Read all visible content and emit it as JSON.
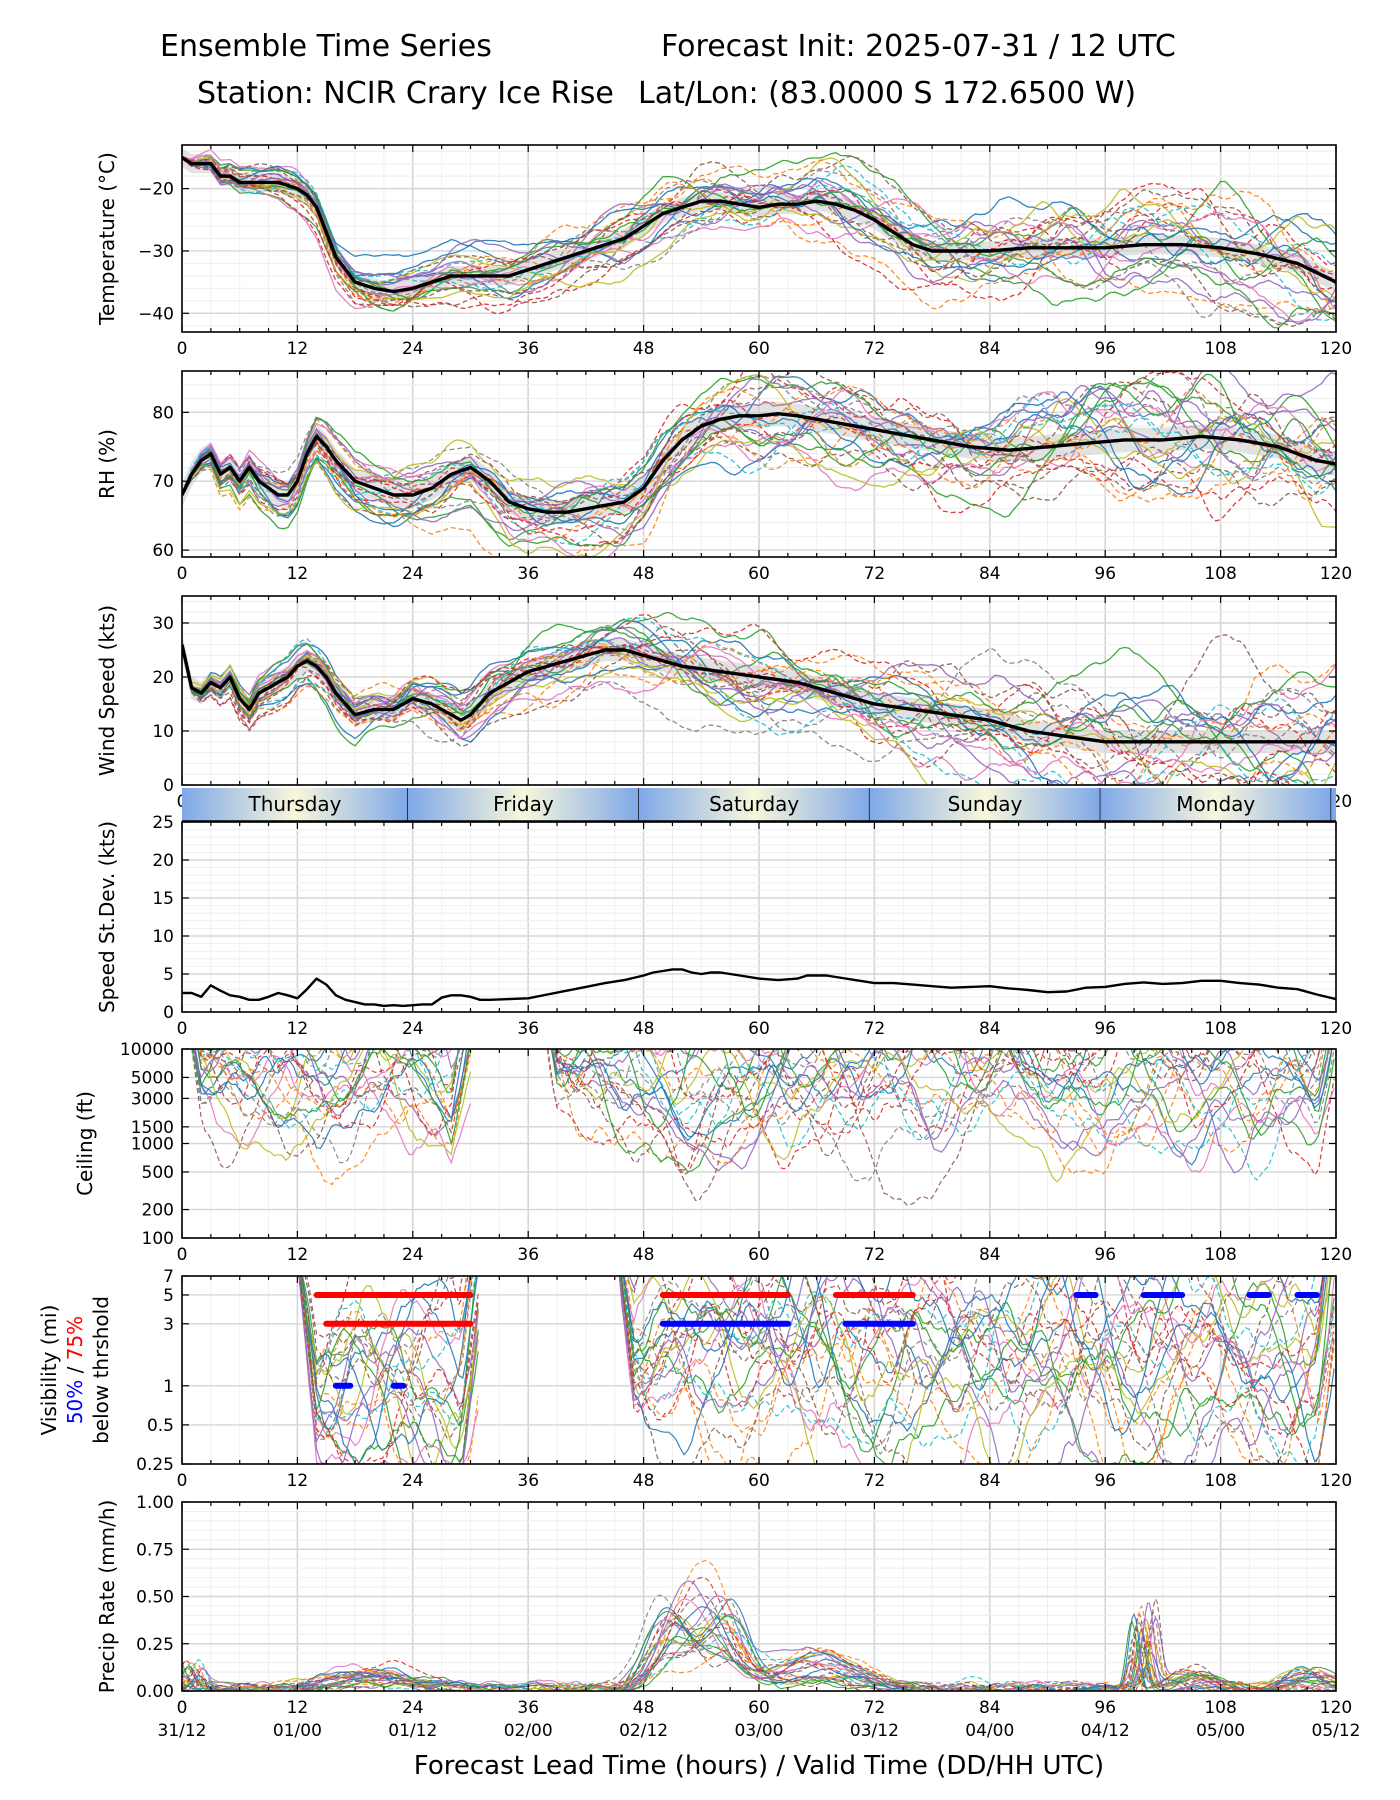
{
  "header": {
    "title_left": "Ensemble Time Series",
    "title_right": "Forecast Init: 2025-07-31 / 12 UTC",
    "station": "Station: NCIR Crary Ice Rise",
    "latlon": "Lat/Lon: (83.0000 S 172.6500 W)"
  },
  "colors": {
    "mean_line": "#000000",
    "members": [
      "#1f77b4",
      "#ff7f0e",
      "#2ca02c",
      "#d62728",
      "#9467bd",
      "#8c564b",
      "#e377c2",
      "#7f7f7f",
      "#bcbd22",
      "#17becf"
    ],
    "vis_50pct": "#0000ff",
    "vis_75pct": "#ff0000",
    "day_band_edge": "#7fa8e8",
    "day_band_center": "#f8f7dc"
  },
  "day_band": {
    "days": [
      {
        "label": "Thursday",
        "start": 0,
        "end": 23.5
      },
      {
        "label": "Friday",
        "start": 23.5,
        "end": 47.5
      },
      {
        "label": "Saturday",
        "start": 47.5,
        "end": 71.5
      },
      {
        "label": "Sunday",
        "start": 71.5,
        "end": 95.5
      },
      {
        "label": "Monday",
        "start": 95.5,
        "end": 119.5
      }
    ]
  },
  "x_axis": {
    "ticks": [
      0,
      12,
      24,
      36,
      48,
      60,
      72,
      84,
      96,
      108,
      120
    ],
    "valid_time_labels": [
      "31/12",
      "01/00",
      "01/12",
      "02/00",
      "02/12",
      "03/00",
      "03/12",
      "04/00",
      "04/12",
      "05/00",
      "05/12"
    ],
    "xlabel": "Forecast Lead Time (hours) / Valid Time (DD/HH UTC)",
    "xlim": [
      0,
      120
    ]
  },
  "chart_data": [
    {
      "type": "line",
      "id": "temp",
      "ylabel": "Temperature (°C)",
      "ylim": [
        -43,
        -13
      ],
      "yticks": [
        -40,
        -30,
        -20
      ],
      "ytick_labels": [
        "−40",
        "−30",
        "−20"
      ],
      "x": [
        0,
        1,
        2,
        3,
        4,
        5,
        6,
        8,
        10,
        12,
        13,
        14,
        15,
        16,
        18,
        20,
        22,
        24,
        26,
        28,
        30,
        32,
        34,
        36,
        38,
        40,
        42,
        44,
        46,
        48,
        50,
        52,
        54,
        56,
        58,
        60,
        62,
        64,
        66,
        68,
        70,
        72,
        74,
        76,
        78,
        80,
        84,
        88,
        92,
        96,
        100,
        104,
        108,
        112,
        116,
        120
      ],
      "series": [
        {
          "name": "",
          "values": [
            -15,
            -16,
            -16,
            -16,
            -18,
            -18,
            -19,
            -19,
            -19,
            -20,
            -21,
            -23,
            -27,
            -31,
            -35,
            -36,
            -36.5,
            -36,
            -35,
            -34,
            -34,
            -34,
            -34,
            -33,
            -32,
            -31,
            -30,
            -29,
            -28,
            -26,
            -24,
            -23,
            -22,
            -22,
            -22.5,
            -23,
            -22.5,
            -22.5,
            -22,
            -22.5,
            -23.5,
            -25,
            -27,
            -29,
            -30,
            -30,
            -30,
            -29.5,
            -29.5,
            -29.5,
            -29,
            -29,
            -29.5,
            -30.5,
            -32,
            -35
          ]
        }
      ],
      "spread": 2.2,
      "missing": "none"
    },
    {
      "type": "line",
      "id": "rh",
      "ylabel": "RH (%)",
      "ylim": [
        59,
        86
      ],
      "yticks": [
        60,
        70,
        80
      ],
      "ytick_labels": [
        "60",
        "70",
        "80"
      ],
      "x": [
        0,
        1,
        2,
        3,
        4,
        5,
        6,
        7,
        8,
        9,
        10,
        11,
        12,
        13,
        14,
        15,
        16,
        18,
        20,
        22,
        24,
        26,
        28,
        30,
        32,
        34,
        36,
        38,
        40,
        42,
        44,
        46,
        48,
        50,
        52,
        54,
        56,
        58,
        60,
        62,
        64,
        66,
        70,
        74,
        78,
        82,
        86,
        90,
        94,
        98,
        102,
        106,
        110,
        114,
        118,
        120
      ],
      "series": [
        {
          "name": "",
          "values": [
            68,
            71,
            73,
            74,
            71,
            72,
            70,
            72,
            70,
            69,
            68,
            68,
            70,
            74,
            76.5,
            75,
            73,
            70,
            69,
            68,
            68,
            69,
            71,
            72,
            70,
            67,
            66,
            65.5,
            65.5,
            66,
            66.5,
            67,
            69,
            73,
            76,
            78,
            79,
            79.5,
            79.5,
            79.8,
            79.5,
            79,
            78,
            77,
            76,
            75,
            74.5,
            75,
            75.5,
            76,
            76,
            76.5,
            76,
            75,
            73,
            72.5
          ]
        }
      ],
      "spread": 2.5,
      "missing": "none"
    },
    {
      "type": "line",
      "id": "wind",
      "ylabel": "Wind Speed (kts)",
      "ylim": [
        0,
        35
      ],
      "yticks": [
        0,
        10,
        20,
        30
      ],
      "ytick_labels": [
        "0",
        "10",
        "20",
        "30"
      ],
      "x": [
        0,
        1,
        2,
        3,
        4,
        5,
        6,
        7,
        8,
        9,
        10,
        11,
        12,
        13,
        14,
        15,
        16,
        17,
        18,
        20,
        22,
        24,
        26,
        28,
        29,
        30,
        32,
        34,
        36,
        38,
        40,
        42,
        44,
        46,
        48,
        52,
        56,
        60,
        64,
        68,
        72,
        76,
        80,
        84,
        88,
        92,
        96,
        100,
        104,
        108,
        112,
        116,
        120
      ],
      "series": [
        {
          "name": "",
          "values": [
            26,
            18,
            17,
            19,
            18,
            20,
            16,
            14,
            17,
            18,
            19,
            20,
            22,
            23,
            22,
            20,
            17,
            15,
            13,
            14,
            14,
            16,
            15,
            13,
            12,
            13,
            17,
            19,
            21,
            22,
            23,
            24,
            25,
            25,
            24,
            22,
            21,
            20,
            19,
            17,
            15,
            14,
            13,
            12,
            10,
            9,
            8,
            8,
            8,
            8,
            8,
            8,
            8
          ]
        }
      ],
      "spread": 3,
      "missing": "none"
    },
    {
      "type": "line",
      "id": "sd",
      "ylabel": "Speed St.Dev. (kts)",
      "ylim": [
        0,
        25
      ],
      "yticks": [
        0,
        5,
        10,
        15,
        20,
        25
      ],
      "ytick_labels": [
        "0",
        "5",
        "10",
        "15",
        "20",
        "25"
      ],
      "x": [
        0,
        1,
        2,
        3,
        4,
        5,
        6,
        7,
        8,
        9,
        10,
        11,
        12,
        13,
        14,
        15,
        16,
        17,
        18,
        19,
        20,
        21,
        22,
        23,
        24,
        25,
        26,
        27,
        28,
        29,
        30,
        31,
        32,
        34,
        36,
        38,
        40,
        42,
        44,
        46,
        48,
        49,
        50,
        51,
        52,
        53,
        54,
        55,
        56,
        58,
        60,
        62,
        64,
        65,
        66,
        67,
        68,
        70,
        72,
        74,
        76,
        78,
        80,
        82,
        84,
        86,
        88,
        90,
        92,
        94,
        96,
        98,
        100,
        102,
        104,
        106,
        108,
        110,
        112,
        114,
        116,
        118,
        120
      ],
      "series": [
        {
          "name": "",
          "values": [
            2.5,
            2.5,
            2,
            3.5,
            2.8,
            2.2,
            2,
            1.6,
            1.6,
            2,
            2.5,
            2.2,
            1.8,
            3,
            4.4,
            3.6,
            2.2,
            1.6,
            1.3,
            1,
            1,
            0.8,
            0.9,
            0.8,
            0.9,
            1,
            1,
            1.9,
            2.2,
            2.2,
            2,
            1.6,
            1.6,
            1.7,
            1.8,
            2.3,
            2.8,
            3.3,
            3.8,
            4.2,
            4.8,
            5.2,
            5.4,
            5.6,
            5.6,
            5.2,
            5,
            5.2,
            5.2,
            4.8,
            4.4,
            4.2,
            4.4,
            4.8,
            4.8,
            4.8,
            4.6,
            4.2,
            3.8,
            3.8,
            3.6,
            3.4,
            3.2,
            3.3,
            3.4,
            3.1,
            2.9,
            2.6,
            2.7,
            3.2,
            3.3,
            3.7,
            3.9,
            3.7,
            3.8,
            4.1,
            4.1,
            3.8,
            3.6,
            3.2,
            3,
            2.3,
            1.7
          ]
        }
      ],
      "spread": 0,
      "missing": "none"
    },
    {
      "type": "line",
      "id": "ceil",
      "ylabel": "Ceiling (ft)",
      "scale": "log",
      "ylim": [
        100,
        10000
      ],
      "yticks": [
        100,
        200,
        500,
        1000,
        1500,
        3000,
        5000,
        10000
      ],
      "ytick_labels": [
        "100",
        "200",
        "500",
        "1000",
        "1500",
        "3000",
        "5000",
        "10000"
      ],
      "clusters": [
        {
          "start": 0,
          "end": 30,
          "center": 6500
        },
        {
          "start": 37,
          "end": 120,
          "center": 6500
        }
      ],
      "missing": "none"
    },
    {
      "type": "line",
      "id": "vis",
      "ylabel": "Visibility (mi)",
      "ylabel_50": "50%",
      "ylabel_sep": " / ",
      "ylabel_75": "75%",
      "ylabel_3": "below thrshold",
      "scale": "log",
      "ylim": [
        0.25,
        7
      ],
      "yticks": [
        0.25,
        0.5,
        1,
        3,
        5,
        7
      ],
      "ytick_labels": [
        "0.25",
        "0.5",
        "1",
        "3",
        "5",
        "7"
      ],
      "clusters": [
        {
          "start": 12,
          "end": 31,
          "center": 1.1
        },
        {
          "start": 45,
          "end": 120,
          "center": 1.8
        }
      ],
      "threshold_segments": [
        {
          "level": 5,
          "start": 14,
          "end": 30,
          "pct": "75"
        },
        {
          "level": 3,
          "start": 15,
          "end": 30,
          "pct": "75"
        },
        {
          "level": 1,
          "start": 16,
          "end": 17.5,
          "pct": "50"
        },
        {
          "level": 1,
          "start": 22,
          "end": 23,
          "pct": "50"
        },
        {
          "level": 5,
          "start": 50,
          "end": 63,
          "pct": "75"
        },
        {
          "level": 3,
          "start": 50,
          "end": 63,
          "pct": "50"
        },
        {
          "level": 5,
          "start": 68,
          "end": 76,
          "pct": "75"
        },
        {
          "level": 3,
          "start": 69,
          "end": 76,
          "pct": "50"
        },
        {
          "level": 5,
          "start": 93,
          "end": 95,
          "pct": "50"
        },
        {
          "level": 5,
          "start": 100,
          "end": 104,
          "pct": "50"
        },
        {
          "level": 5,
          "start": 111,
          "end": 113,
          "pct": "50"
        },
        {
          "level": 5,
          "start": 116,
          "end": 118,
          "pct": "50"
        }
      ],
      "missing": "none"
    },
    {
      "type": "line",
      "id": "precip",
      "ylabel": "Precip Rate (mm/h)",
      "ylim": [
        0,
        1
      ],
      "yticks": [
        0,
        0.25,
        0.5,
        0.75,
        1
      ],
      "ytick_labels": [
        "0.00",
        "0.25",
        "0.50",
        "0.75",
        "1.00"
      ],
      "bumps": [
        {
          "center": 1,
          "width": 1,
          "amp": 0.14
        },
        {
          "center": 20,
          "width": 6,
          "amp": 0.1
        },
        {
          "center": 51,
          "width": 3,
          "amp": 0.4
        },
        {
          "center": 56,
          "width": 3,
          "amp": 0.42
        },
        {
          "center": 66,
          "width": 6,
          "amp": 0.18
        },
        {
          "center": 100,
          "width": 0.8,
          "amp": 0.42
        },
        {
          "center": 105,
          "width": 3,
          "amp": 0.1
        },
        {
          "center": 117,
          "width": 3,
          "amp": 0.1
        }
      ],
      "missing": "none"
    }
  ]
}
